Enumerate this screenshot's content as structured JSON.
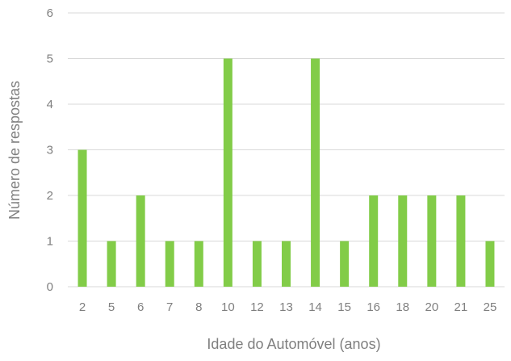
{
  "chart_data": {
    "type": "bar",
    "title": "",
    "xlabel": "Idade do Automóvel (anos)",
    "ylabel": "Número de respostas",
    "categories": [
      "2",
      "5",
      "6",
      "7",
      "8",
      "10",
      "12",
      "13",
      "14",
      "15",
      "16",
      "18",
      "20",
      "21",
      "25"
    ],
    "series": [
      {
        "values": [
          3,
          1,
          2,
          1,
          1,
          5,
          1,
          1,
          5,
          1,
          2,
          2,
          2,
          2,
          1
        ]
      }
    ],
    "ylim": [
      0,
      6
    ],
    "yticks": [
      "0",
      "1",
      "2",
      "3",
      "4",
      "5",
      "6"
    ],
    "grid": true,
    "legend": "none",
    "colors": {
      "bar": "#82cc48",
      "grid": "#d9d9d9",
      "text": "#7f7f7f"
    }
  }
}
